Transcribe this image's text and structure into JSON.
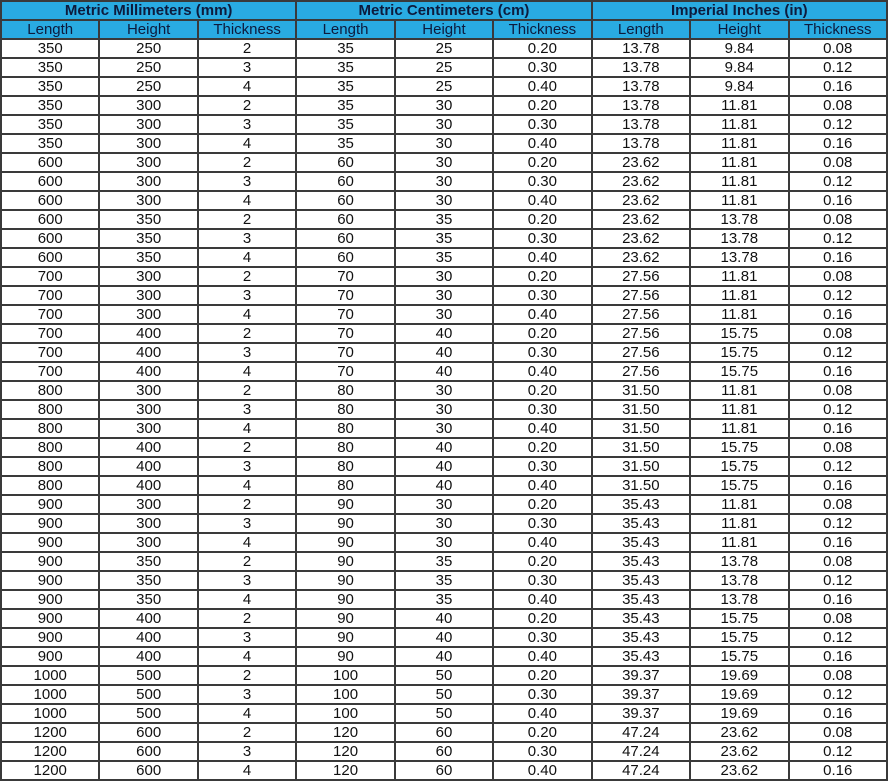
{
  "colors": {
    "header_bg": "#29abe2",
    "header_text": "#0d1b3d",
    "border": "#3a3a3a"
  },
  "groups": [
    "Metric Millimeters (mm)",
    "Metric Centimeters (cm)",
    "Imperial Inches (in)"
  ],
  "columns": [
    "Length",
    "Height",
    "Thickness",
    "Length",
    "Height",
    "Thickness",
    "Length",
    "Height",
    "Thickness"
  ],
  "rows": [
    [
      "350",
      "250",
      "2",
      "35",
      "25",
      "0.20",
      "13.78",
      "9.84",
      "0.08"
    ],
    [
      "350",
      "250",
      "3",
      "35",
      "25",
      "0.30",
      "13.78",
      "9.84",
      "0.12"
    ],
    [
      "350",
      "250",
      "4",
      "35",
      "25",
      "0.40",
      "13.78",
      "9.84",
      "0.16"
    ],
    [
      "350",
      "300",
      "2",
      "35",
      "30",
      "0.20",
      "13.78",
      "11.81",
      "0.08"
    ],
    [
      "350",
      "300",
      "3",
      "35",
      "30",
      "0.30",
      "13.78",
      "11.81",
      "0.12"
    ],
    [
      "350",
      "300",
      "4",
      "35",
      "30",
      "0.40",
      "13.78",
      "11.81",
      "0.16"
    ],
    [
      "600",
      "300",
      "2",
      "60",
      "30",
      "0.20",
      "23.62",
      "11.81",
      "0.08"
    ],
    [
      "600",
      "300",
      "3",
      "60",
      "30",
      "0.30",
      "23.62",
      "11.81",
      "0.12"
    ],
    [
      "600",
      "300",
      "4",
      "60",
      "30",
      "0.40",
      "23.62",
      "11.81",
      "0.16"
    ],
    [
      "600",
      "350",
      "2",
      "60",
      "35",
      "0.20",
      "23.62",
      "13.78",
      "0.08"
    ],
    [
      "600",
      "350",
      "3",
      "60",
      "35",
      "0.30",
      "23.62",
      "13.78",
      "0.12"
    ],
    [
      "600",
      "350",
      "4",
      "60",
      "35",
      "0.40",
      "23.62",
      "13.78",
      "0.16"
    ],
    [
      "700",
      "300",
      "2",
      "70",
      "30",
      "0.20",
      "27.56",
      "11.81",
      "0.08"
    ],
    [
      "700",
      "300",
      "3",
      "70",
      "30",
      "0.30",
      "27.56",
      "11.81",
      "0.12"
    ],
    [
      "700",
      "300",
      "4",
      "70",
      "30",
      "0.40",
      "27.56",
      "11.81",
      "0.16"
    ],
    [
      "700",
      "400",
      "2",
      "70",
      "40",
      "0.20",
      "27.56",
      "15.75",
      "0.08"
    ],
    [
      "700",
      "400",
      "3",
      "70",
      "40",
      "0.30",
      "27.56",
      "15.75",
      "0.12"
    ],
    [
      "700",
      "400",
      "4",
      "70",
      "40",
      "0.40",
      "27.56",
      "15.75",
      "0.16"
    ],
    [
      "800",
      "300",
      "2",
      "80",
      "30",
      "0.20",
      "31.50",
      "11.81",
      "0.08"
    ],
    [
      "800",
      "300",
      "3",
      "80",
      "30",
      "0.30",
      "31.50",
      "11.81",
      "0.12"
    ],
    [
      "800",
      "300",
      "4",
      "80",
      "30",
      "0.40",
      "31.50",
      "11.81",
      "0.16"
    ],
    [
      "800",
      "400",
      "2",
      "80",
      "40",
      "0.20",
      "31.50",
      "15.75",
      "0.08"
    ],
    [
      "800",
      "400",
      "3",
      "80",
      "40",
      "0.30",
      "31.50",
      "15.75",
      "0.12"
    ],
    [
      "800",
      "400",
      "4",
      "80",
      "40",
      "0.40",
      "31.50",
      "15.75",
      "0.16"
    ],
    [
      "900",
      "300",
      "2",
      "90",
      "30",
      "0.20",
      "35.43",
      "11.81",
      "0.08"
    ],
    [
      "900",
      "300",
      "3",
      "90",
      "30",
      "0.30",
      "35.43",
      "11.81",
      "0.12"
    ],
    [
      "900",
      "300",
      "4",
      "90",
      "30",
      "0.40",
      "35.43",
      "11.81",
      "0.16"
    ],
    [
      "900",
      "350",
      "2",
      "90",
      "35",
      "0.20",
      "35.43",
      "13.78",
      "0.08"
    ],
    [
      "900",
      "350",
      "3",
      "90",
      "35",
      "0.30",
      "35.43",
      "13.78",
      "0.12"
    ],
    [
      "900",
      "350",
      "4",
      "90",
      "35",
      "0.40",
      "35.43",
      "13.78",
      "0.16"
    ],
    [
      "900",
      "400",
      "2",
      "90",
      "40",
      "0.20",
      "35.43",
      "15.75",
      "0.08"
    ],
    [
      "900",
      "400",
      "3",
      "90",
      "40",
      "0.30",
      "35.43",
      "15.75",
      "0.12"
    ],
    [
      "900",
      "400",
      "4",
      "90",
      "40",
      "0.40",
      "35.43",
      "15.75",
      "0.16"
    ],
    [
      "1000",
      "500",
      "2",
      "100",
      "50",
      "0.20",
      "39.37",
      "19.69",
      "0.08"
    ],
    [
      "1000",
      "500",
      "3",
      "100",
      "50",
      "0.30",
      "39.37",
      "19.69",
      "0.12"
    ],
    [
      "1000",
      "500",
      "4",
      "100",
      "50",
      "0.40",
      "39.37",
      "19.69",
      "0.16"
    ],
    [
      "1200",
      "600",
      "2",
      "120",
      "60",
      "0.20",
      "47.24",
      "23.62",
      "0.08"
    ],
    [
      "1200",
      "600",
      "3",
      "120",
      "60",
      "0.30",
      "47.24",
      "23.62",
      "0.12"
    ],
    [
      "1200",
      "600",
      "4",
      "120",
      "60",
      "0.40",
      "47.24",
      "23.62",
      "0.16"
    ]
  ]
}
